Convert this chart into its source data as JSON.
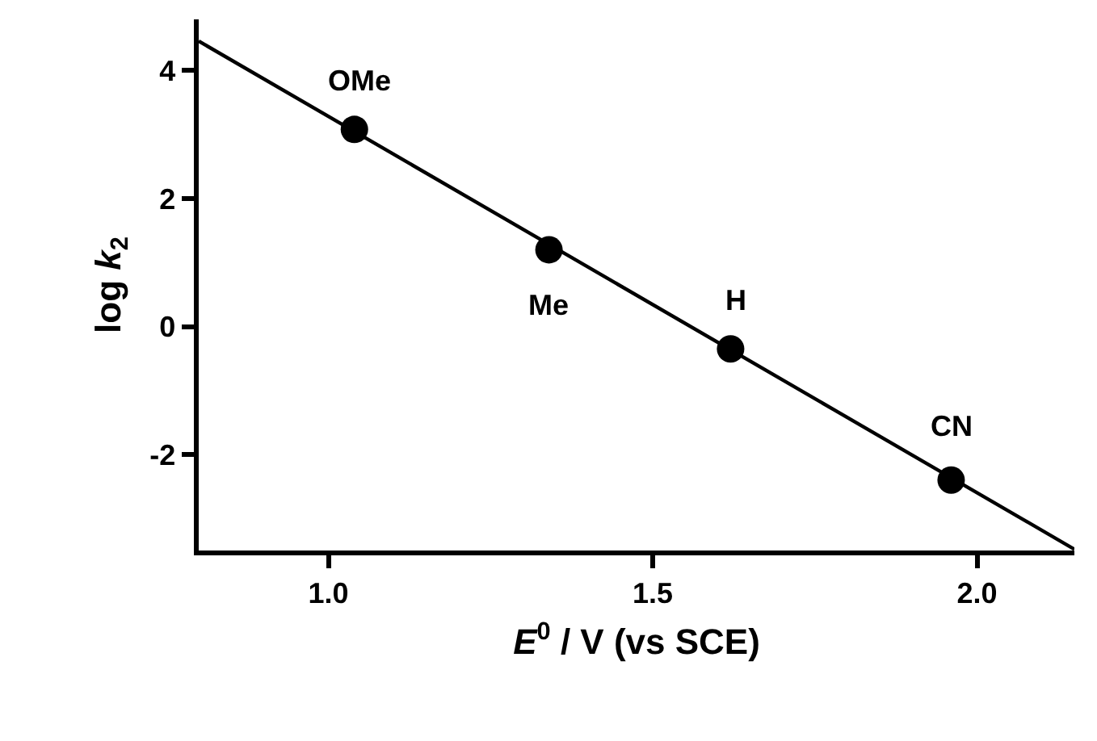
{
  "chart_data": {
    "type": "scatter",
    "xlabel": "E$^{0}$ / V (vs SCE)",
    "ylabel": "log k$_{2}$",
    "series": [
      {
        "color": "#000000",
        "marker": "circle",
        "x": [
          1.04,
          1.34,
          1.62,
          1.96
        ],
        "values": [
          3.08,
          1.2,
          -0.35,
          -2.4
        ]
      },
      {
        "type": "line",
        "color": "#000000",
        "marker": "none",
        "line_style": "solid",
        "x": [
          0.8,
          2.15
        ],
        "values": [
          4.46,
          -3.48
        ]
      }
    ],
    "annotations": [
      {
        "text": "OMe",
        "x": 1.04,
        "y": 3.08
      },
      {
        "text": "Me",
        "x": 1.34,
        "y": 1.2
      },
      {
        "text": "H",
        "x": 1.62,
        "y": -0.35
      },
      {
        "text": "CN",
        "x": 1.96,
        "y": -2.4
      }
    ],
    "xlim": [
      0.8,
      2.15
    ],
    "ylim": [
      -3.5,
      4.8
    ],
    "xticks": [
      {
        "value": 1,
        "label": "1.0"
      },
      1.5,
      {
        "value": 2,
        "label": "2.0"
      }
    ],
    "yticks": [
      -2,
      0,
      2,
      4
    ]
  }
}
